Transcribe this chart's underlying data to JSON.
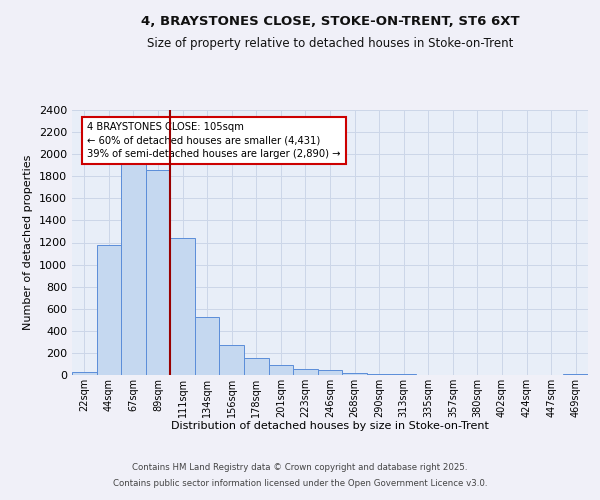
{
  "title_line1": "4, BRAYSTONES CLOSE, STOKE-ON-TRENT, ST6 6XT",
  "title_line2": "Size of property relative to detached houses in Stoke-on-Trent",
  "xlabel": "Distribution of detached houses by size in Stoke-on-Trent",
  "ylabel": "Number of detached properties",
  "bar_labels": [
    "22sqm",
    "44sqm",
    "67sqm",
    "89sqm",
    "111sqm",
    "134sqm",
    "156sqm",
    "178sqm",
    "201sqm",
    "223sqm",
    "246sqm",
    "268sqm",
    "290sqm",
    "313sqm",
    "335sqm",
    "357sqm",
    "380sqm",
    "402sqm",
    "424sqm",
    "447sqm",
    "469sqm"
  ],
  "bar_values": [
    25,
    1175,
    2000,
    1860,
    1240,
    525,
    275,
    155,
    90,
    55,
    45,
    20,
    12,
    5,
    3,
    2,
    1,
    1,
    1,
    1,
    10
  ],
  "bar_color": "#c5d8f0",
  "bar_edge_color": "#5b8dd9",
  "red_line_index": 4,
  "red_line_color": "#990000",
  "annotation_text": "4 BRAYSTONES CLOSE: 105sqm\n← 60% of detached houses are smaller (4,431)\n39% of semi-detached houses are larger (2,890) →",
  "annotation_box_color": "#ffffff",
  "annotation_box_edge_color": "#cc0000",
  "ylim": [
    0,
    2400
  ],
  "yticks": [
    0,
    200,
    400,
    600,
    800,
    1000,
    1200,
    1400,
    1600,
    1800,
    2000,
    2200,
    2400
  ],
  "grid_color": "#ccd6e8",
  "background_color": "#e8eef8",
  "fig_background": "#f0f0f8",
  "footer_line1": "Contains HM Land Registry data © Crown copyright and database right 2025.",
  "footer_line2": "Contains public sector information licensed under the Open Government Licence v3.0."
}
